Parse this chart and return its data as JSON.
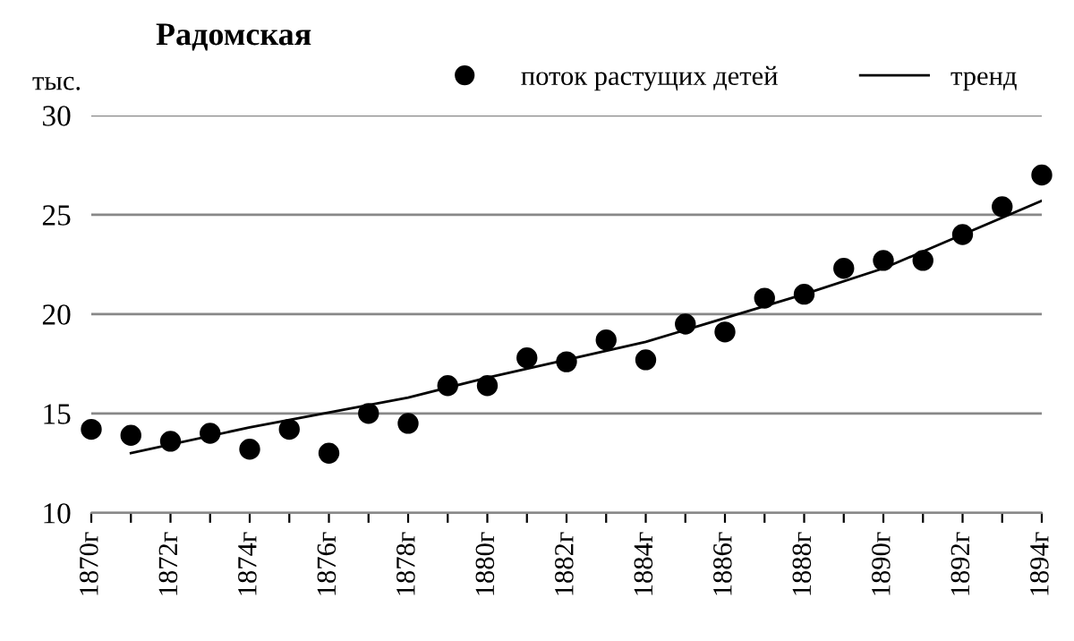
{
  "chart_data": {
    "type": "scatter",
    "title": "Радомская",
    "ylabel": "тыс.",
    "xlim": [
      1870,
      1894
    ],
    "ylim": [
      10,
      30
    ],
    "yticks": [
      10,
      15,
      20,
      25,
      30
    ],
    "xticks": [
      {
        "value": 1870,
        "label": "1870г"
      },
      {
        "value": 1871,
        "label": null
      },
      {
        "value": 1872,
        "label": "1872г"
      },
      {
        "value": 1873,
        "label": null
      },
      {
        "value": 1874,
        "label": "1874г"
      },
      {
        "value": 1875,
        "label": null
      },
      {
        "value": 1876,
        "label": "1876г"
      },
      {
        "value": 1877,
        "label": null
      },
      {
        "value": 1878,
        "label": "1878г"
      },
      {
        "value": 1879,
        "label": null
      },
      {
        "value": 1880,
        "label": "1880г"
      },
      {
        "value": 1881,
        "label": null
      },
      {
        "value": 1882,
        "label": "1882г"
      },
      {
        "value": 1883,
        "label": null
      },
      {
        "value": 1884,
        "label": "1884г"
      },
      {
        "value": 1885,
        "label": null
      },
      {
        "value": 1886,
        "label": "1886г"
      },
      {
        "value": 1887,
        "label": null
      },
      {
        "value": 1888,
        "label": "1888г"
      },
      {
        "value": 1889,
        "label": null
      },
      {
        "value": 1890,
        "label": "1890г"
      },
      {
        "value": 1891,
        "label": null
      },
      {
        "value": 1892,
        "label": "1892г"
      },
      {
        "value": 1893,
        "label": null
      },
      {
        "value": 1894,
        "label": "1894г"
      }
    ],
    "grid": "y",
    "legend": "top right",
    "series": [
      {
        "name": "поток растущих детей",
        "marker": "circle",
        "color": "#000000",
        "x": [
          1870,
          1871,
          1872,
          1873,
          1874,
          1875,
          1876,
          1877,
          1878,
          1879,
          1880,
          1881,
          1882,
          1883,
          1884,
          1885,
          1886,
          1887,
          1888,
          1889,
          1890,
          1891,
          1892,
          1893,
          1894
        ],
        "values": [
          14.2,
          13.9,
          13.6,
          14.0,
          13.2,
          14.2,
          13.0,
          15.0,
          14.5,
          16.4,
          16.4,
          17.8,
          17.6,
          18.7,
          17.7,
          19.5,
          19.1,
          20.8,
          21.0,
          22.3,
          22.7,
          22.7,
          24.0,
          25.4,
          27.0
        ]
      },
      {
        "name": "тренд",
        "type": "line",
        "line_style": "solid",
        "color": "#000000",
        "x": [
          1871,
          1874,
          1878,
          1880,
          1884,
          1888,
          1890,
          1892,
          1894
        ],
        "values": [
          13.0,
          14.3,
          15.8,
          16.8,
          18.6,
          21.0,
          22.3,
          24.0,
          25.7
        ]
      }
    ]
  }
}
